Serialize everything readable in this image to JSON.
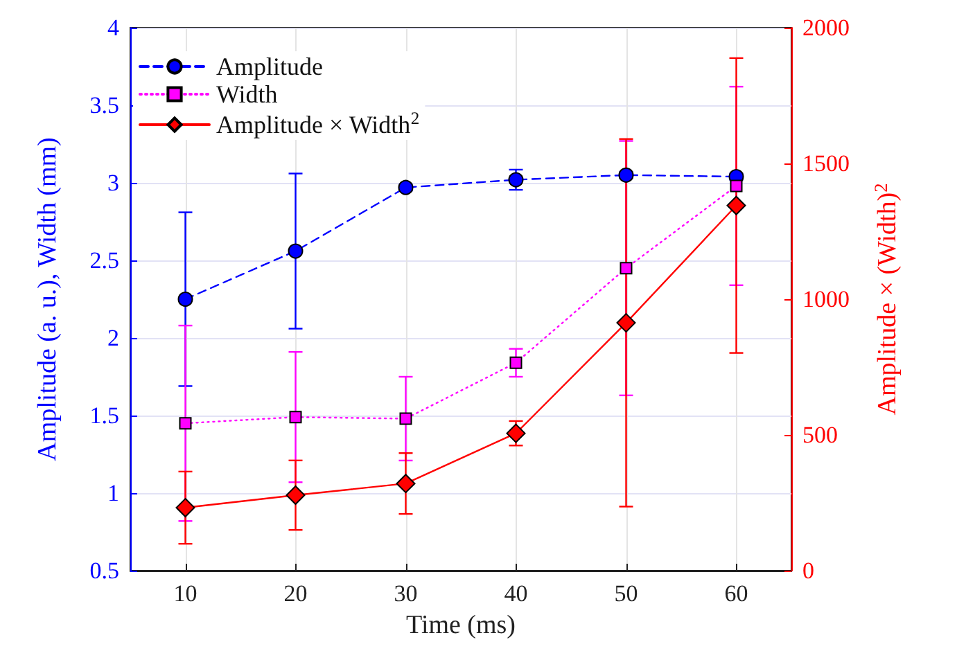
{
  "chart_data": {
    "type": "line",
    "xlabel": "Time (ms)",
    "ylabel": "Amplitude (a. u.), Width (mm)",
    "y2label": "Amplitude × (Width)$^{2}$",
    "x": [
      10,
      20,
      30,
      40,
      50,
      60
    ],
    "series": [
      {
        "name": "Amplitude",
        "color": "#0000ff",
        "marker": "circle",
        "line_style": "dashed",
        "values": [
          2.25,
          2.56,
          2.97,
          3.02,
          3.05,
          3.04
        ],
        "errors": [
          0.56,
          0.5,
          0.02,
          0.065,
          0.02,
          0.02
        ]
      },
      {
        "name": "Width",
        "color": "#ff00ff",
        "marker": "square",
        "line_style": "dotted",
        "values": [
          1.45,
          1.49,
          1.48,
          1.84,
          2.45,
          2.98
        ],
        "errors": [
          0.63,
          0.42,
          0.27,
          0.09,
          0.82,
          0.64
        ]
      },
      {
        "name": "Amplitude × Width$^{2}$",
        "color": "#ff0000",
        "marker": "diamond",
        "line_style": "solid",
        "axis": "y2",
        "values": [
          232,
          278,
          321,
          506,
          913,
          1345
        ],
        "errors": [
          133,
          128,
          112,
          45,
          677,
          543
        ]
      }
    ],
    "xlim": [
      5,
      65
    ],
    "xticks": [
      10,
      20,
      30,
      40,
      50,
      60
    ],
    "ylim": [
      0.5,
      4
    ],
    "yticks": [
      0.5,
      1,
      1.5,
      2,
      2.5,
      3,
      3.5,
      4
    ],
    "y2lim": [
      0,
      2000
    ],
    "y2ticks": [
      0,
      500,
      1000,
      1500,
      2000
    ],
    "grid": true,
    "legend": "top left"
  }
}
